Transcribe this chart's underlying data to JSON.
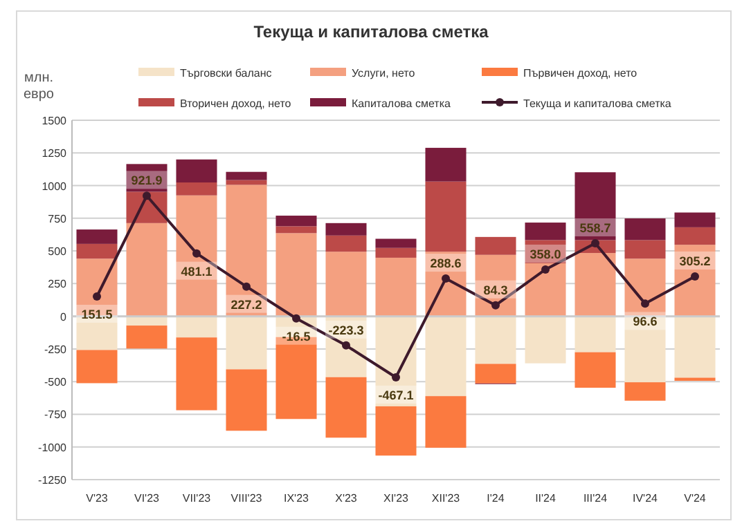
{
  "chart_data": {
    "type": "bar",
    "title": "Текуща и капиталова сметка",
    "ylabel": "млн. евро",
    "stacked": true,
    "categories": [
      "V'23",
      "VI'23",
      "VII'23",
      "VIII'23",
      "IX'23",
      "X'23",
      "XI'23",
      "XII'23",
      "I'24",
      "II'24",
      "III'24",
      "IV'24",
      "V'24"
    ],
    "series": [
      {
        "name": "Търговски баланс",
        "color": "#f5e3c8",
        "values": [
          -258,
          -71,
          -162,
          -406,
          -159,
          -466,
          -689,
          -611,
          -364,
          -360,
          -275,
          -505,
          -470
        ]
      },
      {
        "name": "Услуги, нето",
        "color": "#f4a080",
        "values": [
          441,
          713,
          925,
          1006,
          636,
          494,
          448,
          494,
          470,
          406,
          484,
          441,
          547
        ]
      },
      {
        "name": "Първичен доход, нето",
        "color": "#fb7a40",
        "values": [
          -254,
          -176,
          -557,
          -470,
          -627,
          -463,
          -377,
          -395,
          -150,
          0,
          -272,
          -141,
          -24
        ]
      },
      {
        "name": "Вторичен доход, нето",
        "color": "#bc4a48",
        "values": [
          113,
          240,
          99,
          36,
          53,
          124,
          75,
          537,
          137,
          177,
          99,
          142,
          134
        ]
      },
      {
        "name": "Капиталова сметка",
        "color": "#7a1c3c",
        "values": [
          110,
          212,
          176,
          63,
          81,
          95,
          70,
          258,
          -5,
          134,
          519,
          166,
          113
        ]
      },
      {
        "name": "Текуща и капиталова сметка",
        "type": "line",
        "color": "#3e1a2c",
        "marker": "circle",
        "values": [
          151.5,
          921.9,
          481.1,
          227.2,
          -16.5,
          -223.3,
          -467.1,
          288.6,
          84.3,
          358.0,
          558.7,
          96.6,
          305.2
        ],
        "value_labels": [
          "151.5",
          "921.9",
          "481.1",
          "227.2",
          "-16.5",
          "-223.3",
          "-467.1",
          "288.6",
          "84.3",
          "358.0",
          "558.7",
          "96.6",
          "305.2"
        ]
      }
    ],
    "ylim": [
      -1250,
      1500
    ],
    "yticks": [
      -1250,
      -1000,
      -750,
      -500,
      -250,
      0,
      250,
      500,
      750,
      1000,
      1250,
      1500
    ],
    "grid": "y",
    "legend": "top"
  }
}
